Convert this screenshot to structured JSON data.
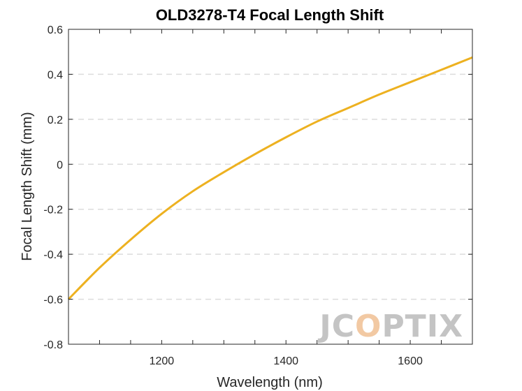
{
  "chart_data": {
    "type": "line",
    "title": "OLD3278-T4 Focal Length Shift",
    "xlabel": "Wavelength (nm)",
    "ylabel": "Focal Length Shift (mm)",
    "xlim": [
      1050,
      1700
    ],
    "ylim": [
      -0.8,
      0.6
    ],
    "xticks": [
      1200,
      1400,
      1600
    ],
    "xtick_labels": [
      "1200",
      "1400",
      "1600"
    ],
    "yticks": [
      -0.8,
      -0.6,
      -0.4,
      -0.2,
      0,
      0.2,
      0.4,
      0.6
    ],
    "ytick_labels": [
      "-0.8",
      "-0.6",
      "-0.4",
      "-0.2",
      "0",
      "0.2",
      "0.4",
      "0.6"
    ],
    "grid": "horizontal dashed",
    "series": [
      {
        "color": "#EDB120",
        "x": [
          1050,
          1100,
          1150,
          1200,
          1250,
          1300,
          1350,
          1400,
          1450,
          1500,
          1550,
          1600,
          1650,
          1700
        ],
        "y": [
          -0.6,
          -0.46,
          -0.335,
          -0.22,
          -0.12,
          -0.035,
          0.045,
          0.12,
          0.19,
          0.25,
          0.31,
          0.365,
          0.42,
          0.475
        ]
      }
    ]
  },
  "watermark": {
    "text_before": "JC",
    "text_accent": "O",
    "text_after": "PTIX"
  }
}
